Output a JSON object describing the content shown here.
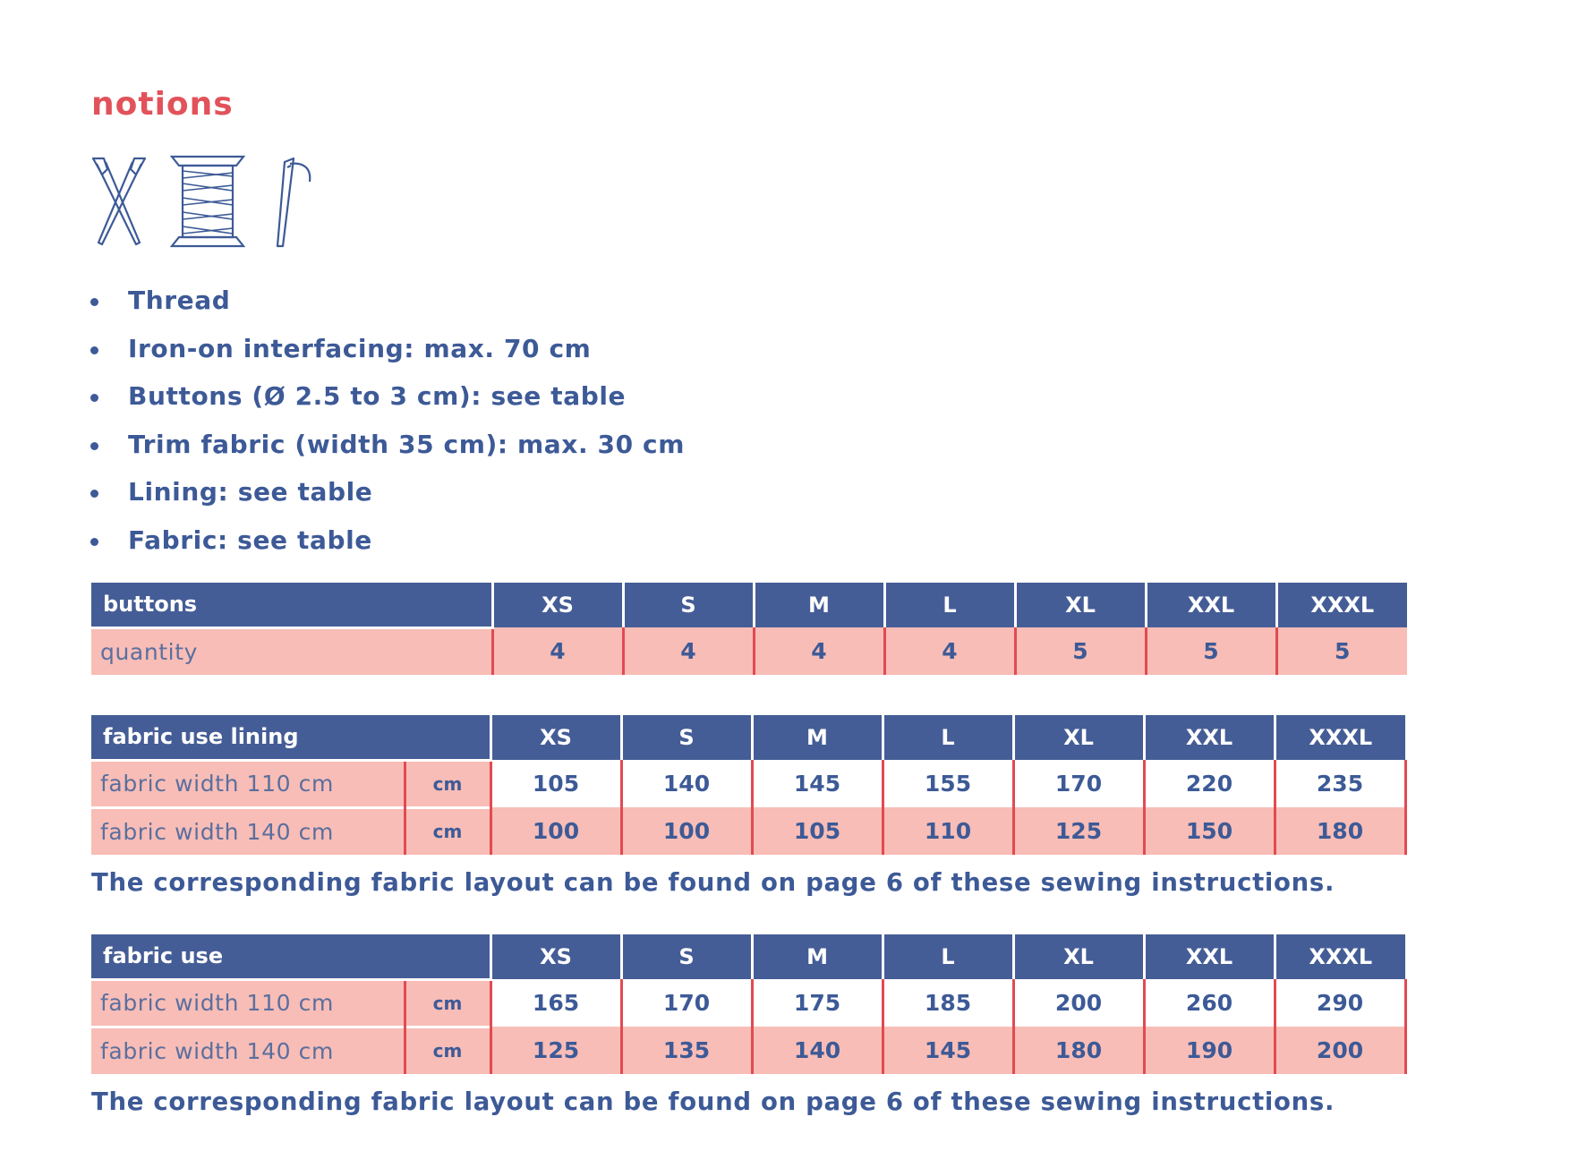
{
  "title": "notions",
  "icons": [
    "scissors-icon",
    "thread-spool-icon",
    "needle-icon"
  ],
  "colors": {
    "accent_red": "#e2525a",
    "navy": "#455d96",
    "text_blue": "#3d5a97",
    "pink": "#f8bdb6",
    "lavender": "#cdd0e3",
    "red_rule": "#e24a52"
  },
  "notions_list": [
    "Thread",
    "Iron-on interfacing: max. 70 cm",
    "Buttons (Ø 2.5 to 3 cm): see table",
    "Trim fabric (width 35 cm): max. 30 cm",
    "Lining: see table",
    "Fabric: see table"
  ],
  "buttons_table": {
    "header": "buttons",
    "sizes": [
      "XS",
      "S",
      "M",
      "L",
      "XL",
      "XXL",
      "XXXL"
    ],
    "row_label": "quantity",
    "values": [
      "4",
      "4",
      "4",
      "4",
      "5",
      "5",
      "5"
    ]
  },
  "lining_table": {
    "header": "fabric use lining",
    "sizes": [
      "XS",
      "S",
      "M",
      "L",
      "XL",
      "XXL",
      "XXXL"
    ],
    "rows": [
      {
        "label": "fabric width 110 cm",
        "unit": "cm",
        "values": [
          "105",
          "140",
          "145",
          "155",
          "170",
          "220",
          "235"
        ]
      },
      {
        "label": "fabric width 140 cm",
        "unit": "cm",
        "values": [
          "100",
          "100",
          "105",
          "110",
          "125",
          "150",
          "180"
        ]
      }
    ],
    "note": "The corresponding fabric layout can be found on page 6 of these sewing instructions."
  },
  "fabric_table": {
    "header": "fabric use",
    "sizes": [
      "XS",
      "S",
      "M",
      "L",
      "XL",
      "XXL",
      "XXXL"
    ],
    "rows": [
      {
        "label": "fabric width 110 cm",
        "unit": "cm",
        "values": [
          "165",
          "170",
          "175",
          "185",
          "200",
          "260",
          "290"
        ]
      },
      {
        "label": "fabric width 140 cm",
        "unit": "cm",
        "values": [
          "125",
          "135",
          "140",
          "145",
          "180",
          "190",
          "200"
        ]
      }
    ],
    "note": "The corresponding fabric layout can be found on page 6 of these sewing instructions."
  }
}
